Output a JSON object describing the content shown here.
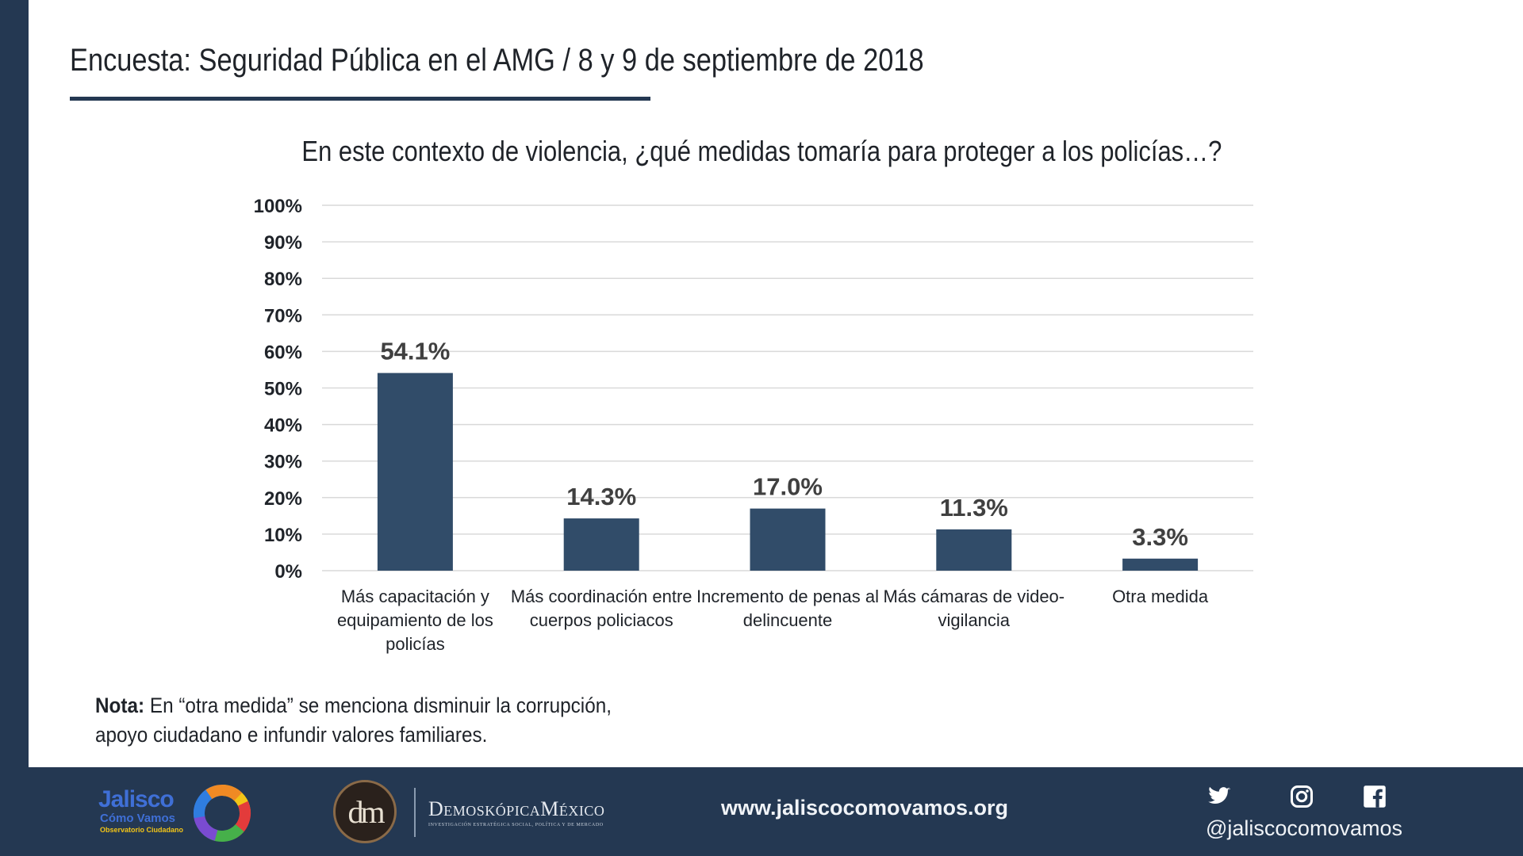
{
  "slide": {
    "title": "Encuesta: Seguridad Pública en el AMG / 8 y 9 de septiembre de 2018"
  },
  "chart_data": {
    "type": "bar",
    "title": "En este contexto de violencia, ¿qué medidas tomaría para proteger a los policías…?",
    "categories": [
      [
        "Más capacitación y",
        "equipamiento de los",
        "policías"
      ],
      [
        "Más coordinación entre",
        "cuerpos policiacos"
      ],
      [
        "Incremento de penas al",
        "delincuente"
      ],
      [
        "Más cámaras de video-",
        "vigilancia"
      ],
      [
        "Otra medida"
      ]
    ],
    "values": [
      54.1,
      14.3,
      17.0,
      11.3,
      3.3
    ],
    "value_labels": [
      "54.1%",
      "14.3%",
      "17.0%",
      "11.3%",
      "3.3%"
    ],
    "ylim": [
      0,
      100
    ],
    "yticks": [
      0,
      10,
      20,
      30,
      40,
      50,
      60,
      70,
      80,
      90,
      100
    ],
    "ytick_labels": [
      "0%",
      "10%",
      "20%",
      "30%",
      "40%",
      "50%",
      "60%",
      "70%",
      "80%",
      "90%",
      "100%"
    ],
    "grid": true,
    "legend": "none",
    "colors": {
      "bar": "#314c69",
      "gridline": "#d9d9d9",
      "value_label": "#404040"
    }
  },
  "note": {
    "label": "Nota:",
    "line1": "En “otra medida” se menciona disminuir la corrupción,",
    "line2": "apoyo ciudadano e infundir valores familiares."
  },
  "footer": {
    "jcv_logo": {
      "word1": "Jalisco",
      "word2": "Cómo Vamos",
      "word3": "Observatorio Ciudadano"
    },
    "dm_logo": {
      "monogram": "dm",
      "name": "DemoskópicaMéxico",
      "tagline": "INVESTIGACIÓN ESTRATÉGICA SOCIAL, POLÍTICA Y DE MERCADO"
    },
    "website": "www.jaliscocomovamos.org",
    "social_icons": [
      "twitter-icon",
      "instagram-icon",
      "facebook-icon"
    ],
    "handle": "@jaliscocomovamos"
  },
  "colors": {
    "navy": "#243852",
    "bar": "#314c69"
  }
}
